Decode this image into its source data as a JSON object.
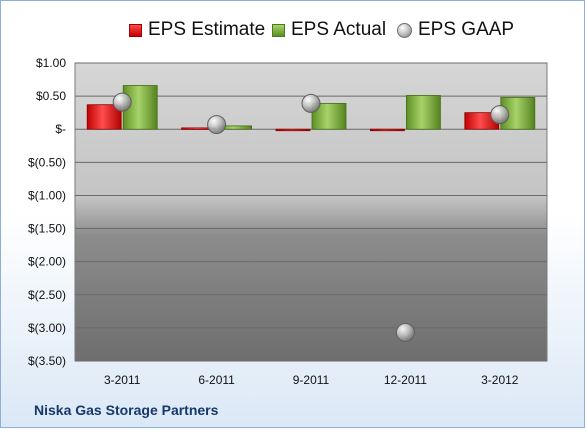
{
  "chart_data": {
    "type": "bar",
    "categories": [
      "3-2011",
      "6-2011",
      "9-2011",
      "12-2011",
      "3-2012"
    ],
    "series": [
      {
        "name": "EPS Estimate",
        "kind": "bar",
        "color": "#e02020",
        "values": [
          0.37,
          0.02,
          -0.01,
          -0.02,
          0.25
        ]
      },
      {
        "name": "EPS Actual",
        "kind": "bar",
        "color": "#7cb342",
        "values": [
          0.66,
          0.05,
          0.39,
          0.51,
          0.48
        ]
      },
      {
        "name": "EPS GAAP",
        "kind": "scatter",
        "color": "#a8a8a8",
        "values": [
          0.41,
          0.07,
          0.39,
          -3.07,
          0.22
        ]
      }
    ],
    "y_ticks": [
      "$1.00",
      "$0.50",
      "$-",
      "$(0.50)",
      "$(1.00)",
      "$(1.50)",
      "$(2.00)",
      "$(2.50)",
      "$(3.00)",
      "$(3.50)"
    ],
    "ylim": [
      -3.5,
      1.0
    ],
    "grid": true,
    "legend_position": "top",
    "title": "",
    "xlabel": "",
    "ylabel": ""
  },
  "company_name": "Niska Gas Storage Partners"
}
